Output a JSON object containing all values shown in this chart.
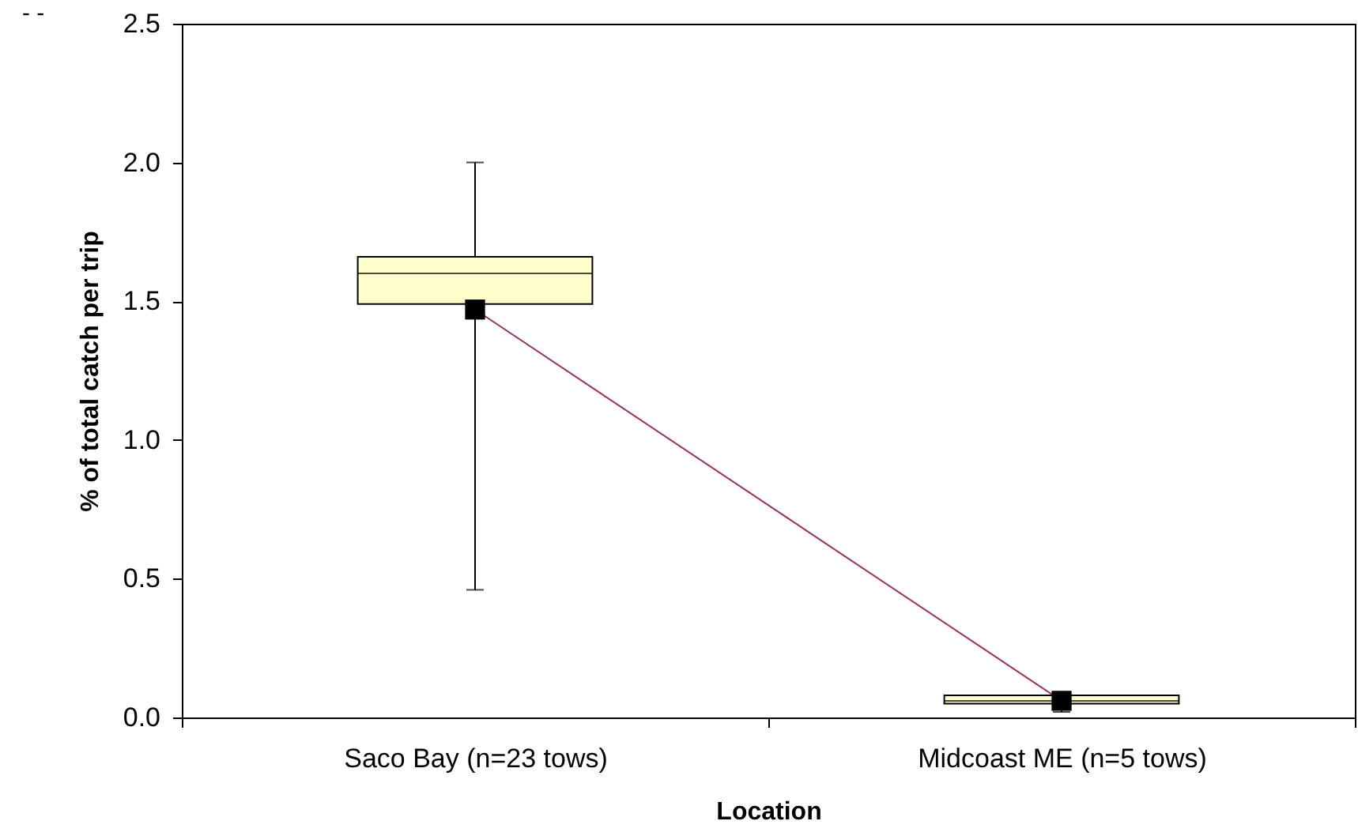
{
  "chart_data": {
    "type": "box",
    "xlabel": "Location",
    "ylabel": "% of total catch per trip",
    "annotations": [
      "- -"
    ],
    "categories": [
      "Saco Bay (n=23 tows)",
      "Midcoast ME (n=5 tows)"
    ],
    "ylim": [
      0,
      2.5
    ],
    "yticks": [
      {
        "value": 0,
        "label": "0.0"
      },
      0.5,
      {
        "value": 1,
        "label": "1.0"
      },
      1.5,
      {
        "value": 2,
        "label": "2.0"
      },
      2.5
    ],
    "series": [
      {
        "color": "#ffffcc",
        "boxes": [
          {
            "low": 0.46,
            "q1": 1.49,
            "median": 1.6,
            "q3": 1.66,
            "high": 2.0
          },
          {
            "low": 0.02,
            "q1": 0.05,
            "median": 0.06,
            "q3": 0.08,
            "high": 0.08
          }
        ]
      },
      {
        "type": "line",
        "color": "#993366",
        "marker": "square",
        "values": [
          1.47,
          0.06
        ]
      }
    ]
  }
}
